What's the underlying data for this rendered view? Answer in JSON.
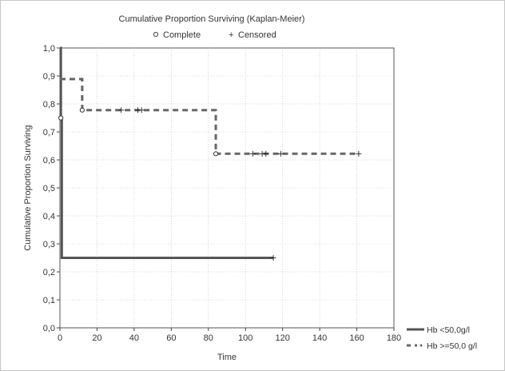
{
  "chart_data": {
    "type": "line",
    "title": "Cumulative Proportion Surviving (Kaplan-Meier)",
    "marker_legend": {
      "complete_label": "Complete",
      "censored_label": "Censored"
    },
    "xlabel": "Time",
    "ylabel": "Cumulative Proportion Surviving",
    "xlim": [
      0,
      180
    ],
    "ylim": [
      0,
      1.0
    ],
    "x_ticks": [
      "0",
      "20",
      "40",
      "60",
      "80",
      "100",
      "120",
      "140",
      "160",
      "180"
    ],
    "y_ticks": [
      "0,0",
      "0,1",
      "0,2",
      "0,3",
      "0,4",
      "0,5",
      "0,6",
      "0,7",
      "0,8",
      "0,9",
      "1,0"
    ],
    "grid": true,
    "legend_position": "bottom-right outside",
    "series": [
      {
        "name": "Hb <50,0g/l",
        "color": "#555555",
        "style": "solid",
        "steps": [
          [
            0,
            1.0
          ],
          [
            0.5,
            0.75
          ],
          [
            1,
            0.25
          ],
          [
            115,
            0.25
          ]
        ],
        "complete": [
          [
            0.5,
            0.75
          ]
        ],
        "censored": [
          [
            115,
            0.25
          ]
        ]
      },
      {
        "name": "Hb >=50,0 g/l",
        "color": "#666666",
        "style": "dashed",
        "steps": [
          [
            0,
            0.889
          ],
          [
            12,
            0.778
          ],
          [
            84,
            0.622
          ],
          [
            160,
            0.622
          ]
        ],
        "complete": [
          [
            12,
            0.778
          ],
          [
            84,
            0.622
          ]
        ],
        "censored": [
          [
            33,
            0.778
          ],
          [
            42,
            0.778
          ],
          [
            44,
            0.778
          ],
          [
            104,
            0.622
          ],
          [
            109,
            0.622
          ],
          [
            111,
            0.622
          ],
          [
            119,
            0.622
          ],
          [
            161,
            0.622
          ]
        ]
      }
    ]
  }
}
